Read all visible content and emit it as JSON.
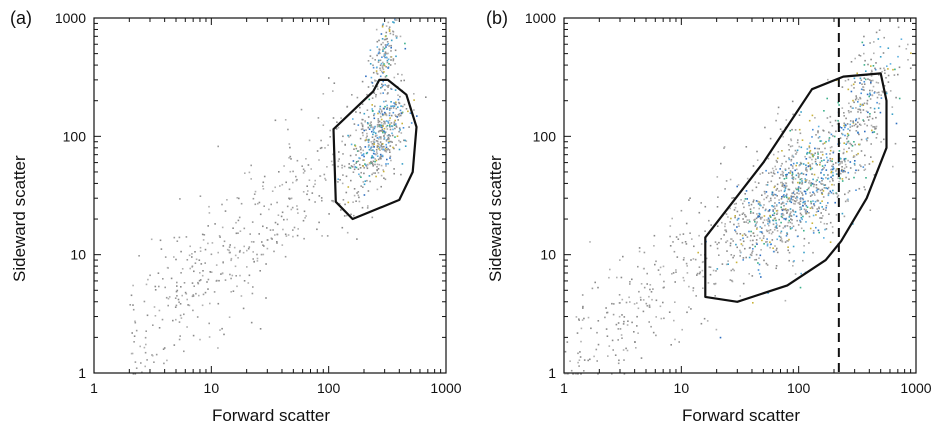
{
  "chart_data": [
    {
      "panel": "(a)",
      "type": "scatter",
      "xlabel": "Forward scatter",
      "ylabel": "Sideward scatter",
      "xscale": "log",
      "yscale": "log",
      "xlim": [
        1,
        1000
      ],
      "ylim": [
        1,
        1000
      ],
      "xticks": [
        "1",
        "10",
        "100",
        "1000"
      ],
      "yticks": [
        "1",
        "10",
        "100",
        "1000"
      ],
      "grid": false,
      "gate": {
        "style": "solid",
        "points": [
          [
            110,
            115
          ],
          [
            240,
            240
          ],
          [
            270,
            300
          ],
          [
            320,
            300
          ],
          [
            460,
            225
          ],
          [
            560,
            120
          ],
          [
            520,
            50
          ],
          [
            400,
            29
          ],
          [
            160,
            20
          ],
          [
            115,
            28
          ]
        ]
      },
      "dense_clusters": [
        {
          "x_center": 270,
          "y_center": 100,
          "x_spread": 0.13,
          "y_spread": 0.2,
          "n": 420
        },
        {
          "x_center": 300,
          "y_center": 500,
          "x_spread": 0.07,
          "y_spread": 0.18,
          "n": 160
        }
      ],
      "diffuse": {
        "x_range": [
          2,
          300
        ],
        "trend": "y increases with x",
        "n": 500
      }
    },
    {
      "panel": "(b)",
      "type": "scatter",
      "xlabel": "Forward scatter",
      "ylabel": "Sideward scatter",
      "xscale": "log",
      "yscale": "log",
      "xlim": [
        1,
        1000
      ],
      "ylim": [
        1,
        1000
      ],
      "xticks": [
        "1",
        "10",
        "100",
        "1000"
      ],
      "yticks": [
        "1",
        "10",
        "100",
        "1000"
      ],
      "grid": false,
      "gate": {
        "style": "solid",
        "points": [
          [
            16,
            4.4
          ],
          [
            30,
            4
          ],
          [
            80,
            5.5
          ],
          [
            170,
            9
          ],
          [
            230,
            13
          ],
          [
            380,
            30
          ],
          [
            560,
            80
          ],
          [
            560,
            200
          ],
          [
            500,
            340
          ],
          [
            240,
            320
          ],
          [
            130,
            250
          ],
          [
            50,
            60
          ],
          [
            16,
            14
          ]
        ]
      },
      "threshold_line": {
        "style": "dashed",
        "x": 220
      },
      "dense_clusters": [
        {
          "x_center": 100,
          "y_center": 35,
          "x_spread": 0.28,
          "y_spread": 0.3,
          "n": 900
        },
        {
          "x_center": 350,
          "y_center": 200,
          "x_spread": 0.15,
          "y_spread": 0.3,
          "n": 250
        }
      ],
      "diffuse": {
        "x_range": [
          1,
          100
        ],
        "trend": "y increases with x",
        "n": 400
      }
    }
  ]
}
